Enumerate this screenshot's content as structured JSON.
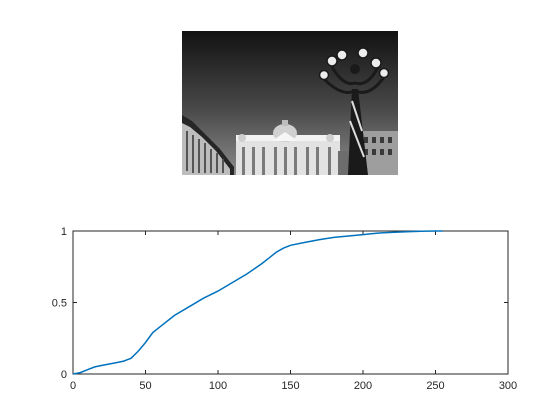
{
  "figure": {
    "image_panel": {
      "content": "grayscale photo",
      "icon": "photo-basilica-with-lamppost"
    }
  },
  "chart_data": {
    "type": "line",
    "title": "",
    "xlabel": "",
    "ylabel": "",
    "xlim": [
      0,
      300
    ],
    "ylim": [
      0,
      1
    ],
    "xticks": [
      0,
      50,
      100,
      150,
      200,
      250,
      300
    ],
    "yticks": [
      0,
      0.5,
      1
    ],
    "xtick_labels": [
      "0",
      "50",
      "100",
      "150",
      "200",
      "250",
      "300"
    ],
    "ytick_labels": [
      "0",
      "0.5",
      "1"
    ],
    "grid": false,
    "legend": "none",
    "line_color": "#0072bd",
    "series": [
      {
        "x": [
          0,
          5,
          10,
          15,
          20,
          25,
          30,
          35,
          40,
          45,
          50,
          55,
          60,
          70,
          80,
          90,
          100,
          110,
          120,
          130,
          135,
          140,
          145,
          150,
          160,
          170,
          180,
          190,
          200,
          210,
          220,
          230,
          240,
          250,
          255
        ],
        "y": [
          0,
          0.01,
          0.03,
          0.05,
          0.06,
          0.07,
          0.08,
          0.09,
          0.11,
          0.16,
          0.22,
          0.29,
          0.33,
          0.41,
          0.47,
          0.53,
          0.58,
          0.64,
          0.7,
          0.77,
          0.81,
          0.85,
          0.88,
          0.9,
          0.92,
          0.94,
          0.955,
          0.965,
          0.975,
          0.985,
          0.99,
          0.995,
          0.998,
          1.0,
          1.0
        ]
      }
    ]
  }
}
